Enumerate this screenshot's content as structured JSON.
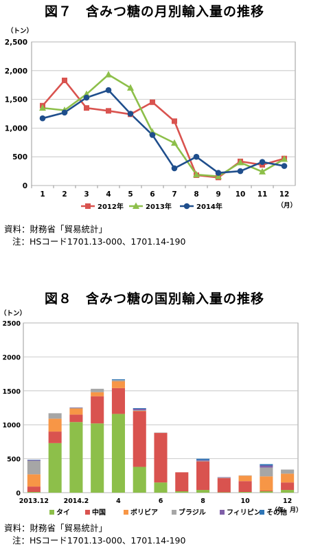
{
  "figure1": {
    "title": "図７　含みつ糖の月別輸入量の推移",
    "source": "資料：財務省「貿易統計」",
    "note": "注：HSコード1701.13-000、1701.14-190",
    "chart_data": {
      "type": "line",
      "ylabel": "（トン）",
      "xlabel": "（月）",
      "ylim": [
        0,
        2500
      ],
      "yticks": [
        "0",
        "500",
        "1,000",
        "1,500",
        "2,000",
        "2,500"
      ],
      "categories": [
        "1",
        "2",
        "3",
        "4",
        "5",
        "6",
        "7",
        "8",
        "9",
        "10",
        "11",
        "12"
      ],
      "legend_position": "bottom",
      "series": [
        {
          "name": "2012年",
          "color": "#d9534f",
          "marker": "square",
          "values": [
            1390,
            1830,
            1350,
            1300,
            1240,
            1450,
            1120,
            180,
            140,
            420,
            360,
            470
          ]
        },
        {
          "name": "2013年",
          "color": "#8dbf4a",
          "marker": "triangle",
          "values": [
            1350,
            1310,
            1590,
            1930,
            1700,
            930,
            740,
            190,
            160,
            400,
            240,
            460
          ]
        },
        {
          "name": "2014年",
          "color": "#1f4e8c",
          "marker": "circle",
          "values": [
            1170,
            1270,
            1530,
            1660,
            1250,
            880,
            300,
            500,
            220,
            250,
            410,
            340
          ]
        }
      ]
    }
  },
  "figure2": {
    "title": "図８　含みつ糖の国別輸入量の推移",
    "source": "資料：財務省「貿易統計」",
    "note": "注：HSコード1701.13-000、1701.14-190",
    "chart_data": {
      "type": "bar",
      "stacked": true,
      "ylabel": "（トン）",
      "xlabel": "（年．月）",
      "ylim": [
        0,
        2500
      ],
      "yticks": [
        "0",
        "500",
        "1000",
        "1500",
        "2000",
        "2500"
      ],
      "x_tick_labels": [
        "2013.12",
        "2014.2",
        "4",
        "6",
        "8",
        "10",
        "12"
      ],
      "categories": [
        "2013.12",
        "2014.1",
        "2014.2",
        "2014.3",
        "2014.4",
        "2014.5",
        "2014.6",
        "2014.7",
        "2014.8",
        "2014.9",
        "2014.10",
        "2014.11",
        "2014.12"
      ],
      "legend_position": "bottom",
      "series": [
        {
          "name": "タイ",
          "color": "#8dbf4a",
          "values": [
            10,
            730,
            1040,
            1020,
            1160,
            380,
            150,
            20,
            40,
            5,
            10,
            20,
            40
          ]
        },
        {
          "name": "中国",
          "color": "#d9534f",
          "values": [
            80,
            170,
            110,
            400,
            380,
            820,
            730,
            280,
            420,
            210,
            160,
            10,
            110
          ]
        },
        {
          "name": "ボリビア",
          "color": "#f79646",
          "values": [
            180,
            190,
            90,
            60,
            100,
            5,
            0,
            0,
            0,
            0,
            80,
            210,
            130
          ]
        },
        {
          "name": "ブラジル",
          "color": "#a6a6a6",
          "values": [
            200,
            80,
            10,
            50,
            20,
            10,
            5,
            0,
            10,
            10,
            5,
            130,
            60
          ]
        },
        {
          "name": "フィリピン",
          "color": "#7f5fa8",
          "values": [
            10,
            0,
            5,
            0,
            0,
            20,
            0,
            0,
            10,
            5,
            0,
            30,
            0
          ]
        },
        {
          "name": "その他",
          "color": "#2e75b6",
          "values": [
            5,
            0,
            0,
            0,
            10,
            10,
            0,
            0,
            20,
            0,
            0,
            20,
            0
          ]
        }
      ]
    }
  }
}
